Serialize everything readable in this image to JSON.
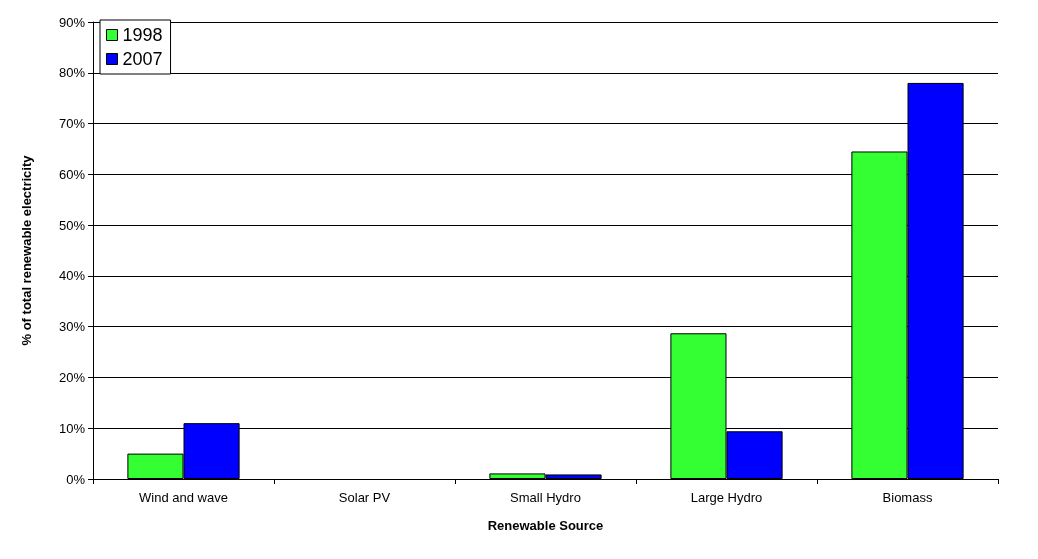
{
  "chart_data": {
    "type": "bar",
    "xlabel": "Renewable Source",
    "ylabel": "% of total renewable electricity",
    "categories": [
      "Wind and wave",
      "Solar PV",
      "Small Hydro",
      "Large Hydro",
      "Biomass"
    ],
    "series": [
      {
        "name": "1998",
        "color": "#33ff33",
        "values": [
          5,
          0,
          1.1,
          28.7,
          64.5
        ]
      },
      {
        "name": "2007",
        "color": "#0000ff",
        "values": [
          11,
          0,
          0.9,
          9.4,
          78
        ]
      }
    ],
    "ylim": [
      0,
      90
    ],
    "yticks": [
      {
        "value": 0,
        "label": "0%"
      },
      {
        "value": 10,
        "label": "10%"
      },
      {
        "value": 20,
        "label": "20%"
      },
      {
        "value": 30,
        "label": "30%"
      },
      {
        "value": 40,
        "label": "40%"
      },
      {
        "value": 50,
        "label": "50%"
      },
      {
        "value": 60,
        "label": "60%"
      },
      {
        "value": 70,
        "label": "70%"
      },
      {
        "value": 80,
        "label": "80%"
      },
      {
        "value": 90,
        "label": "90%"
      }
    ],
    "grid": "y",
    "legend": "top left"
  }
}
